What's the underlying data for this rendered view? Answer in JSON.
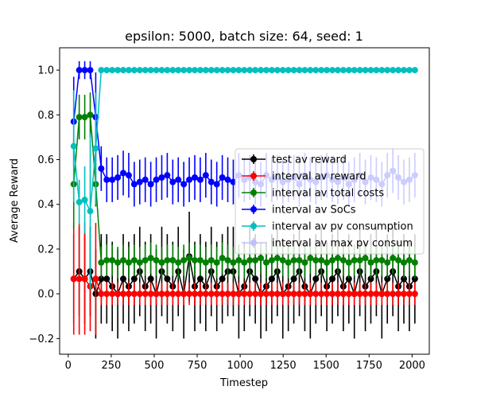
{
  "chart_data": {
    "type": "line",
    "title": "epsilon: 5000, batch size: 64, seed: 1",
    "xlabel": "Timestep",
    "ylabel": "Average Reward",
    "xlim": [
      -50,
      2100
    ],
    "ylim": [
      -0.27,
      1.1
    ],
    "xticks": [
      0,
      250,
      500,
      750,
      1000,
      1250,
      1500,
      1750,
      2000
    ],
    "xtick_labels": [
      "0",
      "250",
      "500",
      "750",
      "1000",
      "1250",
      "1500",
      "1750",
      "2000"
    ],
    "yticks": [
      -0.2,
      0.0,
      0.2,
      0.4,
      0.6,
      0.8,
      1.0
    ],
    "ytick_labels": [
      "−0.2",
      "0.0",
      "0.2",
      "0.4",
      "0.6",
      "0.8",
      "1.0"
    ],
    "legend_position": "center-right",
    "x": [
      32,
      64,
      96,
      128,
      160,
      192,
      224,
      256,
      288,
      320,
      352,
      384,
      416,
      448,
      480,
      512,
      544,
      576,
      608,
      640,
      672,
      704,
      736,
      768,
      800,
      832,
      864,
      896,
      928,
      960,
      992,
      1024,
      1056,
      1088,
      1120,
      1152,
      1184,
      1216,
      1248,
      1280,
      1312,
      1344,
      1376,
      1408,
      1440,
      1472,
      1504,
      1536,
      1568,
      1600,
      1632,
      1664,
      1696,
      1728,
      1760,
      1792,
      1824,
      1856,
      1888,
      1920,
      1952,
      1984,
      2016
    ],
    "series": [
      {
        "name": "test av reward",
        "color": "#000000",
        "marker": "circle",
        "values": [
          0.067,
          0.1,
          0.067,
          0.1,
          0.0,
          0.067,
          0.067,
          0.033,
          0.0,
          0.067,
          0.033,
          0.067,
          0.1,
          0.033,
          0.067,
          0.0,
          0.1,
          0.067,
          0.033,
          0.1,
          0.0,
          0.167,
          0.033,
          0.067,
          0.033,
          0.1,
          0.033,
          0.067,
          0.1,
          0.1,
          0.0,
          0.033,
          0.1,
          0.067,
          0.0,
          0.033,
          0.067,
          0.1,
          0.0,
          0.033,
          0.067,
          0.1,
          0.033,
          0.0,
          0.067,
          0.1,
          0.033,
          0.067,
          0.1,
          0.033,
          0.067,
          0.0,
          0.1,
          0.033,
          0.067,
          0.1,
          0.0,
          0.067,
          0.1,
          0.033,
          0.067,
          0.033,
          0.067
        ],
        "err": [
          0.2,
          0.2,
          0.2,
          0.2,
          0.2,
          0.2,
          0.2,
          0.2,
          0.2,
          0.2,
          0.2,
          0.2,
          0.2,
          0.2,
          0.2,
          0.2,
          0.2,
          0.2,
          0.2,
          0.2,
          0.2,
          0.2,
          0.2,
          0.2,
          0.2,
          0.2,
          0.2,
          0.2,
          0.2,
          0.2,
          0.2,
          0.2,
          0.2,
          0.2,
          0.2,
          0.2,
          0.2,
          0.2,
          0.2,
          0.2,
          0.2,
          0.2,
          0.2,
          0.2,
          0.2,
          0.2,
          0.2,
          0.2,
          0.2,
          0.2,
          0.2,
          0.2,
          0.2,
          0.2,
          0.2,
          0.2,
          0.2,
          0.2,
          0.2,
          0.2,
          0.2,
          0.2,
          0.2
        ]
      },
      {
        "name": "interval av reward",
        "color": "#ff0000",
        "marker": "circle",
        "values": [
          0.067,
          0.067,
          0.067,
          0.033,
          0.067,
          0.0,
          0.0,
          0.0,
          0.0,
          0.0,
          0.0,
          0.0,
          0.0,
          0.0,
          0.0,
          0.0,
          0.0,
          0.0,
          0.0,
          0.0,
          0.0,
          0.0,
          0.0,
          0.0,
          0.0,
          0.0,
          0.0,
          0.0,
          0.0,
          0.0,
          0.0,
          0.0,
          0.0,
          0.0,
          0.0,
          0.0,
          0.0,
          0.0,
          0.0,
          0.0,
          0.0,
          0.0,
          0.0,
          0.0,
          0.0,
          0.0,
          0.0,
          0.0,
          0.0,
          0.0,
          0.0,
          0.0,
          0.0,
          0.0,
          0.0,
          0.0,
          0.0,
          0.0,
          0.0,
          0.0,
          0.0,
          0.0,
          0.0
        ],
        "err": [
          0.25,
          0.25,
          0.25,
          0.2,
          0.25,
          0.05,
          0.05,
          0.05,
          0.05,
          0.05,
          0.05,
          0.05,
          0.05,
          0.05,
          0.05,
          0.05,
          0.05,
          0.05,
          0.05,
          0.05,
          0.05,
          0.05,
          0.05,
          0.05,
          0.05,
          0.05,
          0.05,
          0.05,
          0.05,
          0.05,
          0.05,
          0.05,
          0.05,
          0.05,
          0.05,
          0.05,
          0.05,
          0.05,
          0.05,
          0.05,
          0.05,
          0.05,
          0.05,
          0.05,
          0.05,
          0.05,
          0.05,
          0.05,
          0.05,
          0.05,
          0.05,
          0.05,
          0.05,
          0.05,
          0.05,
          0.05,
          0.05,
          0.05,
          0.05,
          0.05,
          0.05,
          0.05,
          0.05
        ]
      },
      {
        "name": "interval av total costs",
        "color": "#008000",
        "marker": "circle",
        "values": [
          0.49,
          0.79,
          0.79,
          0.8,
          0.49,
          0.14,
          0.15,
          0.15,
          0.14,
          0.15,
          0.14,
          0.15,
          0.14,
          0.15,
          0.16,
          0.15,
          0.14,
          0.15,
          0.15,
          0.14,
          0.15,
          0.16,
          0.15,
          0.15,
          0.14,
          0.15,
          0.14,
          0.16,
          0.15,
          0.14,
          0.15,
          0.14,
          0.15,
          0.15,
          0.16,
          0.14,
          0.15,
          0.16,
          0.15,
          0.14,
          0.15,
          0.15,
          0.14,
          0.16,
          0.15,
          0.15,
          0.14,
          0.15,
          0.16,
          0.15,
          0.14,
          0.15,
          0.15,
          0.16,
          0.14,
          0.15,
          0.15,
          0.14,
          0.16,
          0.15,
          0.14,
          0.15,
          0.14
        ],
        "err": [
          0.2,
          0.1,
          0.1,
          0.1,
          0.1,
          0.07,
          0.07,
          0.07,
          0.07,
          0.07,
          0.07,
          0.07,
          0.07,
          0.07,
          0.07,
          0.07,
          0.07,
          0.07,
          0.07,
          0.07,
          0.07,
          0.07,
          0.07,
          0.07,
          0.07,
          0.07,
          0.07,
          0.07,
          0.07,
          0.07,
          0.07,
          0.07,
          0.07,
          0.07,
          0.07,
          0.07,
          0.07,
          0.07,
          0.07,
          0.07,
          0.07,
          0.07,
          0.07,
          0.07,
          0.07,
          0.07,
          0.07,
          0.07,
          0.07,
          0.07,
          0.07,
          0.07,
          0.07,
          0.07,
          0.07,
          0.07,
          0.07,
          0.07,
          0.07,
          0.07,
          0.07,
          0.07,
          0.07
        ]
      },
      {
        "name": "interval av SoCs",
        "color": "#0000ff",
        "marker": "circle",
        "values": [
          0.77,
          1.0,
          1.0,
          1.0,
          0.79,
          0.56,
          0.51,
          0.51,
          0.52,
          0.54,
          0.53,
          0.49,
          0.5,
          0.51,
          0.49,
          0.51,
          0.52,
          0.53,
          0.5,
          0.51,
          0.49,
          0.51,
          0.52,
          0.51,
          0.53,
          0.5,
          0.49,
          0.52,
          0.51,
          0.5,
          0.53,
          0.51,
          0.52,
          0.5,
          0.49,
          0.53,
          0.51,
          0.52,
          0.5,
          0.51,
          0.52,
          0.49,
          0.53,
          0.51,
          0.5,
          0.52,
          0.53,
          0.51,
          0.5,
          0.52,
          0.49,
          0.51,
          0.53,
          0.5,
          0.52,
          0.51,
          0.49,
          0.53,
          0.55,
          0.52,
          0.5,
          0.51,
          0.53
        ],
        "err": [
          0.2,
          0.04,
          0.04,
          0.04,
          0.2,
          0.1,
          0.1,
          0.1,
          0.1,
          0.1,
          0.1,
          0.1,
          0.1,
          0.1,
          0.1,
          0.1,
          0.1,
          0.1,
          0.1,
          0.1,
          0.1,
          0.1,
          0.1,
          0.1,
          0.1,
          0.1,
          0.1,
          0.1,
          0.1,
          0.1,
          0.1,
          0.1,
          0.1,
          0.1,
          0.1,
          0.1,
          0.1,
          0.1,
          0.1,
          0.1,
          0.1,
          0.1,
          0.1,
          0.1,
          0.1,
          0.1,
          0.1,
          0.1,
          0.1,
          0.1,
          0.1,
          0.1,
          0.1,
          0.1,
          0.1,
          0.1,
          0.1,
          0.1,
          0.1,
          0.1,
          0.1,
          0.1,
          0.1
        ]
      },
      {
        "name": "interval av pv consumption",
        "color": "#00bfbf",
        "marker": "circle",
        "values": [
          0.66,
          0.41,
          0.42,
          0.37,
          0.65,
          1.0,
          1.0,
          1.0,
          1.0,
          1.0,
          1.0,
          1.0,
          1.0,
          1.0,
          1.0,
          1.0,
          1.0,
          1.0,
          1.0,
          1.0,
          1.0,
          1.0,
          1.0,
          1.0,
          1.0,
          1.0,
          1.0,
          1.0,
          1.0,
          1.0,
          1.0,
          1.0,
          1.0,
          1.0,
          1.0,
          1.0,
          1.0,
          1.0,
          1.0,
          1.0,
          1.0,
          1.0,
          1.0,
          1.0,
          1.0,
          1.0,
          1.0,
          1.0,
          1.0,
          1.0,
          1.0,
          1.0,
          1.0,
          1.0,
          1.0,
          1.0,
          1.0,
          1.0,
          1.0,
          1.0,
          1.0,
          1.0,
          1.0
        ],
        "err": [
          0.25,
          0.1,
          0.15,
          0.35,
          0.25,
          0.0,
          0.0,
          0.0,
          0.0,
          0.0,
          0.0,
          0.0,
          0.0,
          0.0,
          0.0,
          0.0,
          0.0,
          0.0,
          0.0,
          0.0,
          0.0,
          0.0,
          0.0,
          0.0,
          0.0,
          0.0,
          0.0,
          0.0,
          0.0,
          0.0,
          0.0,
          0.0,
          0.0,
          0.0,
          0.0,
          0.0,
          0.0,
          0.0,
          0.0,
          0.0,
          0.0,
          0.0,
          0.0,
          0.0,
          0.0,
          0.0,
          0.0,
          0.0,
          0.0,
          0.0,
          0.0,
          0.0,
          0.0,
          0.0,
          0.0,
          0.0,
          0.0,
          0.0,
          0.0,
          0.0,
          0.0,
          0.0,
          0.0
        ]
      },
      {
        "name": "interval av max pv consum",
        "color": "#bfbfff",
        "marker": "circle",
        "values": [
          null,
          null,
          null,
          null,
          null,
          null,
          null,
          null,
          null,
          null,
          null,
          null,
          null,
          null,
          null,
          null,
          null,
          null,
          null,
          null,
          null,
          null,
          null,
          null,
          null,
          null,
          null,
          null,
          null,
          null,
          null,
          null,
          null,
          null,
          null,
          null,
          null,
          null,
          null,
          null,
          null,
          null,
          null,
          null,
          null,
          null,
          null,
          null,
          null,
          null,
          null,
          null,
          null,
          null,
          null,
          null,
          null,
          null,
          null,
          null,
          null,
          null,
          null
        ],
        "err": []
      }
    ]
  }
}
